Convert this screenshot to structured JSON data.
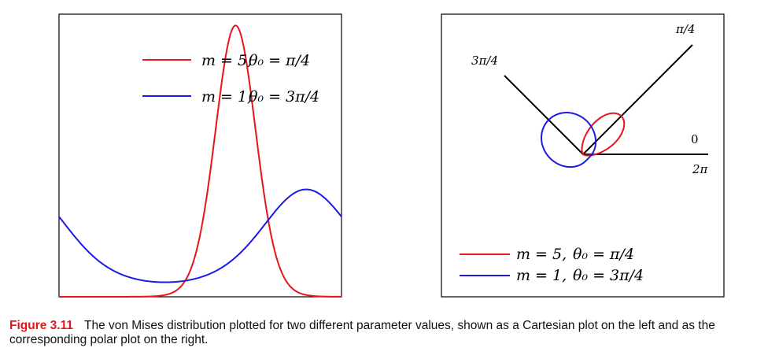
{
  "caption": {
    "label": "Figure 3.11",
    "text": "The von Mises distribution plotted for two different parameter values, shown as a Cartesian plot on the left and as the corresponding polar plot on the right."
  },
  "colors": {
    "series_red": "#e8141b",
    "series_blue": "#1a1ae6",
    "axis": "#000000"
  },
  "chart_data": [
    {
      "type": "line",
      "title": "",
      "xlabel": "",
      "ylabel": "",
      "x_range": [
        -3.14159,
        3.14159
      ],
      "y_range": [
        0,
        1.0
      ],
      "ticks": "none",
      "legend_position": "top-right",
      "series": [
        {
          "name": "m = 5, θ₀ = π/4",
          "m": 5,
          "theta0": 0.7854,
          "color": "red",
          "peak_x": 0.7854,
          "peak_value": 0.96
        },
        {
          "name": "m = 1, θ₀ = 3π/4",
          "m": 1,
          "theta0": 2.3562,
          "color": "blue",
          "peak_x": 2.3562,
          "peak_value": 0.38
        }
      ],
      "legend": [
        {
          "line_color": "red",
          "m_text": "m = 5,",
          "theta_text": "θ₀ = π/4"
        },
        {
          "line_color": "blue",
          "m_text": "m = 1,",
          "theta_text": "θ₀ = 3π/4"
        }
      ]
    },
    {
      "type": "polar",
      "title": "",
      "angle_labels": {
        "zero": "0",
        "two_pi": "2π",
        "pi_over_4": "π/4",
        "three_pi_over_4": "3π/4"
      },
      "legend_position": "bottom-left",
      "series": [
        {
          "name": "m = 5, θ₀ = π/4",
          "m": 5,
          "theta0": 0.7854,
          "color": "red"
        },
        {
          "name": "m = 1, θ₀ = 3π/4",
          "m": 1,
          "theta0": 2.3562,
          "color": "blue"
        }
      ],
      "legend": [
        {
          "line_color": "red",
          "m_text": "m = 5,",
          "theta_text": "θ₀ = π/4"
        },
        {
          "line_color": "blue",
          "m_text": "m = 1,",
          "theta_text": "θ₀ = 3π/4"
        }
      ]
    }
  ]
}
